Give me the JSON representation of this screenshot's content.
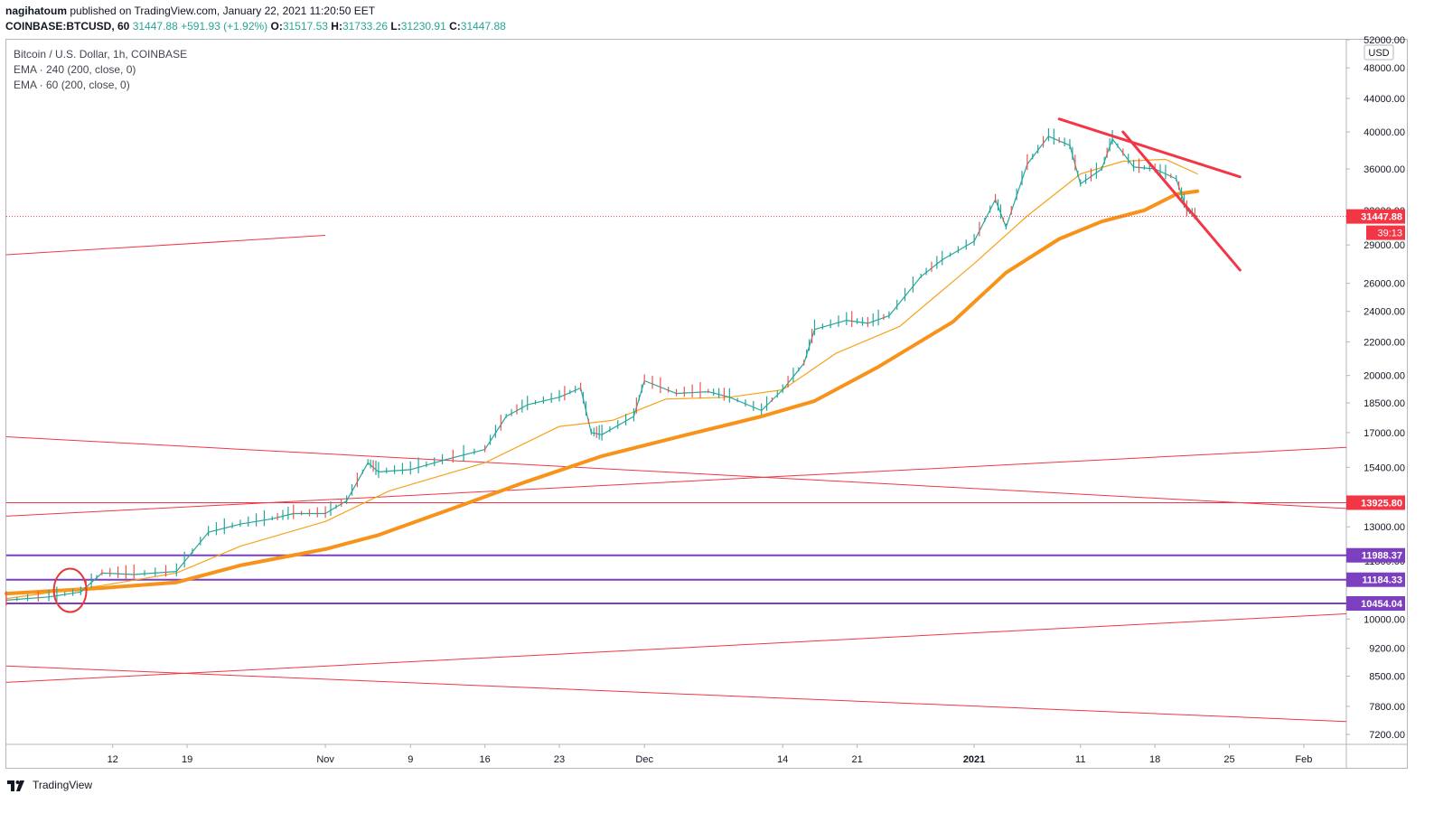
{
  "header": {
    "publisher": "nagihatoum",
    "published_text": "published on TradingView.com, January 22, 2021 11:20:50 EET",
    "symbol": "COINBASE:BTCUSD, 60",
    "last": "31447.88",
    "change": "+591.93 (+1.92%)",
    "o_label": "O:",
    "o_value": "31517.53",
    "h_label": "H:",
    "h_value": "31733.26",
    "l_label": "L:",
    "l_value": "31230.91",
    "c_label": "C:",
    "c_value": "31447.88"
  },
  "legend": {
    "title": "Bitcoin / U.S. Dollar, 1h, COINBASE",
    "ema240": "EMA · 240 (200, close, 0)",
    "ema60": "EMA · 60 (200, close, 0)"
  },
  "footer": {
    "brand": "TradingView"
  },
  "chart_data": {
    "type": "line",
    "currency": "USD",
    "y_scale": "log",
    "ylim": [
      7000,
      52000
    ],
    "y_ticks": [
      "52000.00",
      "48000.00",
      "44000.00",
      "40000.00",
      "36000.00",
      "32000.00",
      "29000.00",
      "26000.00",
      "24000.00",
      "22000.00",
      "20000.00",
      "18500.00",
      "17000.00",
      "15400.00",
      "14000.00",
      "13000.00",
      "11800.00",
      "10000.00",
      "9200.00",
      "8500.00",
      "7800.00",
      "7200.00"
    ],
    "x_ticks": [
      {
        "label": "12",
        "date": "2020-10-12"
      },
      {
        "label": "19",
        "date": "2020-10-19"
      },
      {
        "label": "Nov",
        "date": "2020-11-01"
      },
      {
        "label": "9",
        "date": "2020-11-09"
      },
      {
        "label": "16",
        "date": "2020-11-16"
      },
      {
        "label": "23",
        "date": "2020-11-23"
      },
      {
        "label": "Dec",
        "date": "2020-12-01"
      },
      {
        "label": "14",
        "date": "2020-12-14"
      },
      {
        "label": "21",
        "date": "2020-12-21"
      },
      {
        "label": "2021",
        "date": "2021-01-01"
      },
      {
        "label": "11",
        "date": "2021-01-11"
      },
      {
        "label": "18",
        "date": "2021-01-18"
      },
      {
        "label": "25",
        "date": "2021-01-25"
      },
      {
        "label": "Feb",
        "date": "2021-02-01"
      }
    ],
    "xlim": [
      "2020-10-02",
      "2021-02-05"
    ],
    "series": [
      {
        "name": "Bitcoin / U.S. Dollar",
        "color": "#26a69a",
        "x": [
          "2020-10-02",
          "2020-10-06",
          "2020-10-09",
          "2020-10-11",
          "2020-10-14",
          "2020-10-18",
          "2020-10-21",
          "2020-10-24",
          "2020-10-27",
          "2020-10-29",
          "2020-11-01",
          "2020-11-03",
          "2020-11-05",
          "2020-11-06",
          "2020-11-09",
          "2020-11-12",
          "2020-11-16",
          "2020-11-18",
          "2020-11-20",
          "2020-11-23",
          "2020-11-25",
          "2020-11-26",
          "2020-11-27",
          "2020-11-30",
          "2020-12-01",
          "2020-12-04",
          "2020-12-07",
          "2020-12-09",
          "2020-12-12",
          "2020-12-14",
          "2020-12-16",
          "2020-12-17",
          "2020-12-20",
          "2020-12-22",
          "2020-12-24",
          "2020-12-27",
          "2020-12-29",
          "2021-01-01",
          "2021-01-03",
          "2021-01-04",
          "2021-01-06",
          "2021-01-08",
          "2021-01-10",
          "2021-01-11",
          "2021-01-13",
          "2021-01-14",
          "2021-01-16",
          "2021-01-18",
          "2021-01-20",
          "2021-01-21",
          "2021-01-22"
        ],
        "values": [
          10550,
          10650,
          10800,
          11400,
          11350,
          11450,
          12800,
          13100,
          13300,
          13500,
          13500,
          14000,
          15600,
          15200,
          15300,
          15700,
          16200,
          17800,
          18400,
          18800,
          19300,
          17000,
          16900,
          17800,
          19700,
          19000,
          19100,
          18800,
          18100,
          19200,
          20700,
          22800,
          23400,
          23200,
          23700,
          26500,
          27800,
          29300,
          33000,
          30500,
          36500,
          39500,
          38500,
          34500,
          36000,
          39200,
          36200,
          36000,
          35000,
          32000,
          31447.88
        ]
      },
      {
        "name": "EMA · 60 (200, close, 0)",
        "color": "#f7a21b",
        "x": [
          "2020-10-02",
          "2020-10-11",
          "2020-10-18",
          "2020-10-24",
          "2020-11-01",
          "2020-11-07",
          "2020-11-16",
          "2020-11-23",
          "2020-11-28",
          "2020-12-03",
          "2020-12-09",
          "2020-12-14",
          "2020-12-19",
          "2020-12-25",
          "2021-01-01",
          "2021-01-06",
          "2021-01-11",
          "2021-01-15",
          "2021-01-19",
          "2021-01-22"
        ],
        "values": [
          10600,
          11000,
          11400,
          12300,
          13200,
          14400,
          15600,
          17300,
          17600,
          18700,
          18800,
          19200,
          21300,
          23000,
          27500,
          31500,
          35500,
          36800,
          37000,
          35500
        ]
      },
      {
        "name": "EMA · 240 (200, close, 0)",
        "color": "#f7931a",
        "x": [
          "2020-10-02",
          "2020-10-11",
          "2020-10-18",
          "2020-10-24",
          "2020-11-01",
          "2020-11-06",
          "2020-11-13",
          "2020-11-20",
          "2020-11-27",
          "2020-12-05",
          "2020-12-12",
          "2020-12-17",
          "2020-12-23",
          "2020-12-30",
          "2021-01-04",
          "2021-01-09",
          "2021-01-13",
          "2021-01-17",
          "2021-01-20",
          "2021-01-22"
        ],
        "values": [
          10750,
          10920,
          11100,
          11650,
          12200,
          12700,
          13700,
          14800,
          15900,
          16900,
          17800,
          18600,
          20500,
          23300,
          26800,
          29500,
          31000,
          32000,
          33500,
          33800
        ]
      }
    ],
    "horizontal_levels": [
      {
        "value": 13925.8,
        "label": "13925.80",
        "color": "#f23645"
      },
      {
        "value": 11988.37,
        "label": "11988.37",
        "color": "#7b3fc0"
      },
      {
        "value": 11184.33,
        "label": "11184.33",
        "color": "#7b3fc0"
      },
      {
        "value": 10454.04,
        "label": "10454.04",
        "color": "#7b3fc0"
      }
    ],
    "trendlines": [
      {
        "x": [
          "2021-01-09",
          "2021-01-26"
        ],
        "y": [
          41500,
          35200
        ],
        "color": "#f23645",
        "style": "thick"
      },
      {
        "x": [
          "2021-01-15",
          "2021-01-26"
        ],
        "y": [
          40000,
          27000
        ],
        "color": "#f23645",
        "style": "thick"
      },
      {
        "x": [
          "2020-10-02",
          "2020-11-01"
        ],
        "y": [
          28200,
          29800
        ],
        "color": "#f23645",
        "style": "thin"
      },
      {
        "x": [
          "2020-10-02",
          "2021-02-05"
        ],
        "y": [
          16800,
          13700
        ],
        "color": "#f23645",
        "style": "thin"
      },
      {
        "x": [
          "2020-10-02",
          "2021-02-05"
        ],
        "y": [
          13400,
          16300
        ],
        "color": "#f23645",
        "style": "thin"
      },
      {
        "x": [
          "2020-10-02",
          "2021-02-05"
        ],
        "y": [
          8350,
          10150
        ],
        "color": "#f23645",
        "style": "thin"
      },
      {
        "x": [
          "2020-10-02",
          "2021-02-05"
        ],
        "y": [
          8750,
          7470
        ],
        "color": "#f23645",
        "style": "thin"
      }
    ],
    "annotations": [
      {
        "type": "circle",
        "x": "2020-10-08",
        "y": 10850,
        "color": "#e53935"
      }
    ],
    "last_price": {
      "value": 31447.88,
      "label": "31447.88",
      "countdown": "39:13",
      "color": "#f23645"
    },
    "grid": false
  }
}
